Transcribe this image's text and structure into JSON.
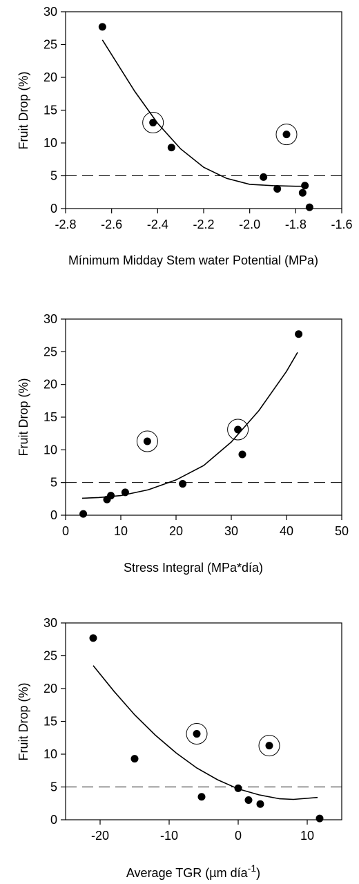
{
  "chart_data": [
    {
      "type": "scatter",
      "title": "",
      "xlabel": "Mínimum Midday Stem water Potential (MPa)",
      "ylabel": "Fruit Drop (%)",
      "xlim": [
        -2.8,
        -1.6
      ],
      "ylim": [
        0,
        30
      ],
      "xticks": [
        -2.8,
        -2.6,
        -2.4,
        -2.2,
        -2.0,
        -1.8,
        -1.6
      ],
      "xtick_labels": [
        "-2.8",
        "-2.6",
        "-2.4",
        "-2.2",
        "-2.0",
        "-1.8",
        "-1.6"
      ],
      "yticks": [
        0,
        5,
        10,
        15,
        20,
        25,
        30
      ],
      "ytick_labels": [
        "0",
        "5",
        "10",
        "15",
        "20",
        "25",
        "30"
      ],
      "points": [
        {
          "x": -2.64,
          "y": 27.7
        },
        {
          "x": -2.42,
          "y": 13.1,
          "circled": true
        },
        {
          "x": -2.34,
          "y": 9.3
        },
        {
          "x": -1.84,
          "y": 11.3,
          "circled": true
        },
        {
          "x": -1.94,
          "y": 4.8
        },
        {
          "x": -1.88,
          "y": 3.0
        },
        {
          "x": -1.76,
          "y": 3.5
        },
        {
          "x": -1.77,
          "y": 2.4
        },
        {
          "x": -1.74,
          "y": 0.2
        }
      ],
      "fit_curve": [
        [
          -2.64,
          25.7
        ],
        [
          -2.5,
          17.9
        ],
        [
          -2.4,
          13.0
        ],
        [
          -2.3,
          9.1
        ],
        [
          -2.2,
          6.3
        ],
        [
          -2.1,
          4.6
        ],
        [
          -2.0,
          3.7
        ],
        [
          -1.9,
          3.5
        ],
        [
          -1.8,
          3.4
        ],
        [
          -1.76,
          3.4
        ]
      ],
      "reference_line_y": 5
    },
    {
      "type": "scatter",
      "title": "",
      "xlabel": "Stress Integral (MPa*día)",
      "ylabel": "Fruit Drop (%)",
      "xlim": [
        0,
        50
      ],
      "ylim": [
        0,
        30
      ],
      "xticks": [
        0,
        10,
        20,
        30,
        40,
        50
      ],
      "xtick_labels": [
        "0",
        "10",
        "20",
        "30",
        "40",
        "50"
      ],
      "yticks": [
        0,
        5,
        10,
        15,
        20,
        25,
        30
      ],
      "ytick_labels": [
        "0",
        "5",
        "10",
        "15",
        "20",
        "25",
        "30"
      ],
      "points": [
        {
          "x": 3.2,
          "y": 0.2
        },
        {
          "x": 7.5,
          "y": 2.4
        },
        {
          "x": 8.2,
          "y": 3.0
        },
        {
          "x": 10.8,
          "y": 3.5
        },
        {
          "x": 14.8,
          "y": 11.3,
          "circled": true
        },
        {
          "x": 21.2,
          "y": 4.8
        },
        {
          "x": 31.2,
          "y": 13.1,
          "circled": true
        },
        {
          "x": 32.0,
          "y": 9.3
        },
        {
          "x": 42.2,
          "y": 27.7
        }
      ],
      "fit_curve": [
        [
          3.0,
          2.6
        ],
        [
          6,
          2.7
        ],
        [
          10,
          3.0
        ],
        [
          15,
          3.9
        ],
        [
          20,
          5.4
        ],
        [
          25,
          7.6
        ],
        [
          30,
          11.2
        ],
        [
          35,
          16.0
        ],
        [
          40,
          22.0
        ],
        [
          42,
          24.9
        ]
      ],
      "reference_line_y": 5
    },
    {
      "type": "scatter",
      "title": "",
      "xlabel": "Average TGR (µm día-1)",
      "xlabel_parts": {
        "base": "Average TGR (",
        "mu": "µ",
        "rest": "m día",
        "sup": "-1",
        "close": ")"
      },
      "ylabel": "Fruit Drop (%)",
      "xlim": [
        -25,
        15
      ],
      "ylim": [
        0,
        30
      ],
      "xticks": [
        -20,
        -10,
        0,
        10
      ],
      "xtick_labels": [
        "-20",
        "-10",
        "0",
        "10"
      ],
      "yticks": [
        0,
        5,
        10,
        15,
        20,
        25,
        30
      ],
      "ytick_labels": [
        "0",
        "5",
        "10",
        "15",
        "20",
        "25",
        "30"
      ],
      "points": [
        {
          "x": -21.0,
          "y": 27.7
        },
        {
          "x": -15.0,
          "y": 9.3
        },
        {
          "x": -6.0,
          "y": 13.1,
          "circled": true
        },
        {
          "x": -5.3,
          "y": 3.5
        },
        {
          "x": 0.0,
          "y": 4.8
        },
        {
          "x": 1.5,
          "y": 3.0
        },
        {
          "x": 4.5,
          "y": 11.3,
          "circled": true
        },
        {
          "x": 3.2,
          "y": 2.4
        },
        {
          "x": 11.8,
          "y": 0.2
        }
      ],
      "fit_curve": [
        [
          -21,
          23.5
        ],
        [
          -18,
          19.6
        ],
        [
          -15,
          16.0
        ],
        [
          -12,
          12.9
        ],
        [
          -9,
          10.2
        ],
        [
          -6,
          7.9
        ],
        [
          -3,
          6.1
        ],
        [
          0,
          4.7
        ],
        [
          3,
          3.8
        ],
        [
          6,
          3.2
        ],
        [
          8,
          3.1
        ],
        [
          11.5,
          3.4
        ]
      ],
      "reference_line_y": 5
    }
  ]
}
